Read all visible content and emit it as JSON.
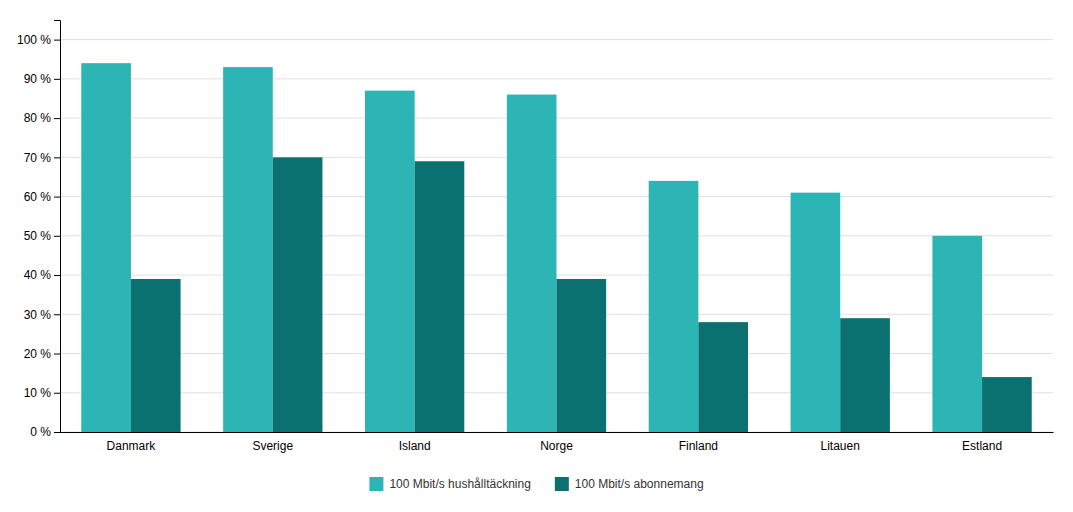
{
  "chart_data": {
    "type": "bar",
    "categories": [
      "Danmark",
      "Sverige",
      "Island",
      "Norge",
      "Finland",
      "Litauen",
      "Estland"
    ],
    "series": [
      {
        "name": "100 Mbit/s hushålltäckning",
        "color": "#2DB5B5",
        "values": [
          94,
          93,
          87,
          86,
          64,
          61,
          50
        ]
      },
      {
        "name": "100 Mbit/s abonnemang",
        "color": "#0A7070",
        "values": [
          39,
          70,
          69,
          39,
          28,
          29,
          14
        ]
      }
    ],
    "ylim": [
      0,
      105
    ],
    "yticks": [
      {
        "value": 0,
        "label": "0 %"
      },
      {
        "value": 10,
        "label": "10 %"
      },
      {
        "value": 20,
        "label": "20 %"
      },
      {
        "value": 30,
        "label": "30 %"
      },
      {
        "value": 40,
        "label": "40 %"
      },
      {
        "value": 50,
        "label": "50 %"
      },
      {
        "value": 60,
        "label": "60 %"
      },
      {
        "value": 70,
        "label": "70 %"
      },
      {
        "value": 80,
        "label": "80 %"
      },
      {
        "value": 90,
        "label": "90 %"
      },
      {
        "value": 100,
        "label": "100 %"
      }
    ],
    "grid": true,
    "legend": "bottom"
  }
}
